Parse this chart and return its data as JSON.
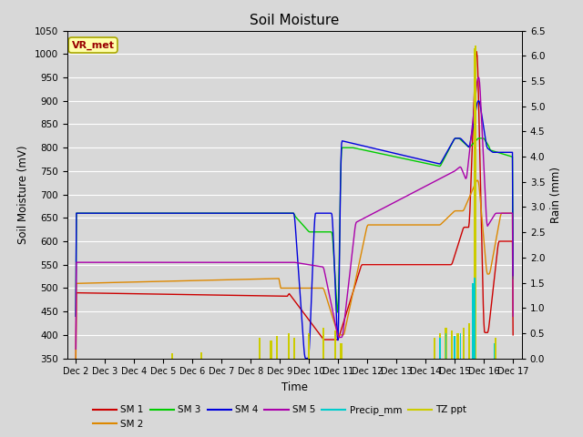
{
  "title": "Soil Moisture",
  "xlabel": "Time",
  "ylabel_left": "Soil Moisture (mV)",
  "ylabel_right": "Rain (mm)",
  "ylim_left": [
    350,
    1050
  ],
  "ylim_right": [
    0.0,
    6.5
  ],
  "yticks_left": [
    350,
    400,
    450,
    500,
    550,
    600,
    650,
    700,
    750,
    800,
    850,
    900,
    950,
    1000,
    1050
  ],
  "yticks_right": [
    0.0,
    0.5,
    1.0,
    1.5,
    2.0,
    2.5,
    3.0,
    3.5,
    4.0,
    4.5,
    5.0,
    5.5,
    6.0,
    6.5
  ],
  "bg_color": "#d8d8d8",
  "plot_bg_color": "#d8d8d8",
  "grid_color": "white",
  "vr_met_box_color": "#ffffaa",
  "vr_met_text_color": "#990000",
  "colors": {
    "SM1": "#cc0000",
    "SM2": "#dd8800",
    "SM3": "#00cc00",
    "SM4": "#0000dd",
    "SM5": "#aa00aa",
    "Precip_mm": "#00cccc",
    "TZ_ppt": "#cccc00"
  },
  "x_tick_labels": [
    "Dec 2",
    "Dec 3",
    "Dec 4",
    "Dec 5",
    "Dec 6",
    "Dec 7",
    "Dec 8",
    "Dec 9",
    "Dec 10",
    "Dec 11",
    "Dec 12",
    "Dec 13",
    "Dec 14",
    "Dec 15",
    "Dec 16",
    "Dec 17"
  ],
  "n_days": 16
}
